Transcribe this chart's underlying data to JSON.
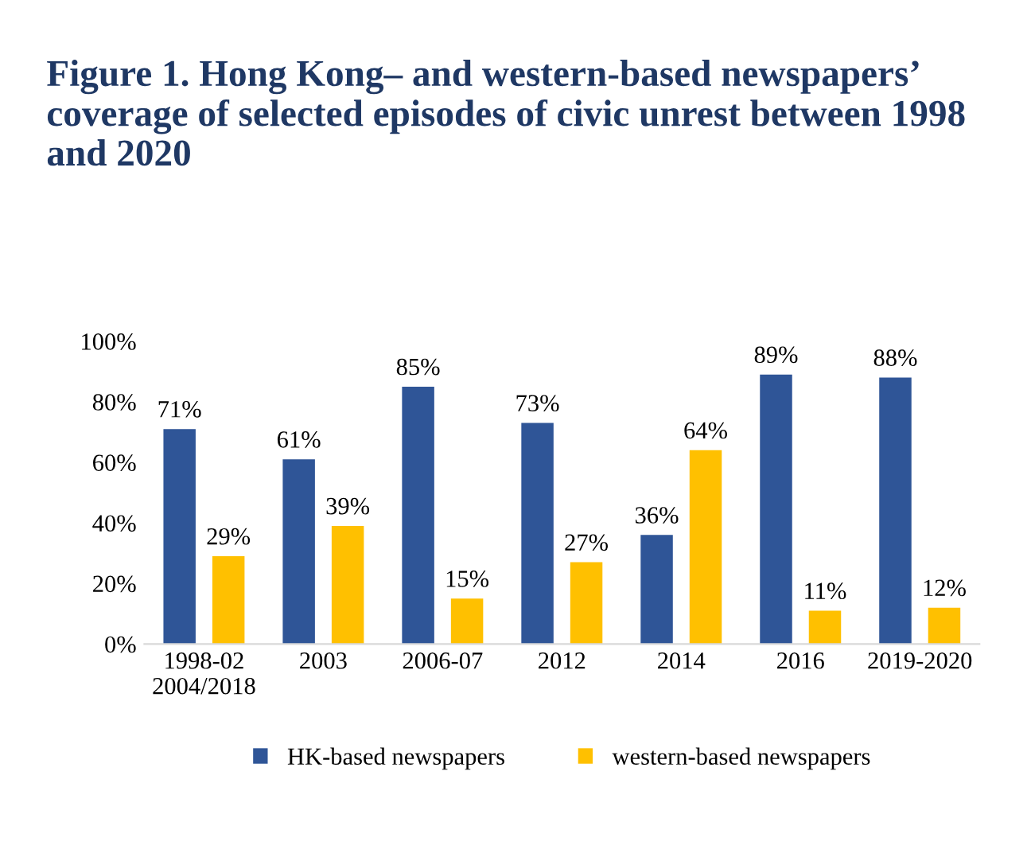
{
  "chart_data": {
    "type": "bar",
    "title": "Figure 1. Hong Kong– and western-based newspapers’ coverage of selected episodes of civic unrest between 1998 and 2020",
    "categories": [
      "1998-02\n2004/2018",
      "2003",
      "2006-07",
      "2012",
      "2014",
      "2016",
      "2019-2020"
    ],
    "series": [
      {
        "name": "HK-based newspapers",
        "color": "#2f5597",
        "values": [
          71,
          61,
          85,
          73,
          36,
          89,
          88
        ],
        "value_labels": [
          "71%",
          "61%",
          "85%",
          "73%",
          "36%",
          "89%",
          "88%"
        ]
      },
      {
        "name": "western-based newspapers",
        "color": "#ffc000",
        "values": [
          29,
          39,
          15,
          27,
          64,
          11,
          12
        ],
        "value_labels": [
          "29%",
          "39%",
          "15%",
          "27%",
          "64%",
          "11%",
          "12%"
        ]
      }
    ],
    "ylim": [
      0,
      100
    ],
    "yticks": [
      {
        "value": 0,
        "label": "0%"
      },
      {
        "value": 20,
        "label": "20%"
      },
      {
        "value": 40,
        "label": "40%"
      },
      {
        "value": 60,
        "label": "60%"
      },
      {
        "value": 80,
        "label": "80%"
      },
      {
        "value": 100,
        "label": "100%"
      }
    ],
    "grid": false,
    "legend": "bottom"
  }
}
